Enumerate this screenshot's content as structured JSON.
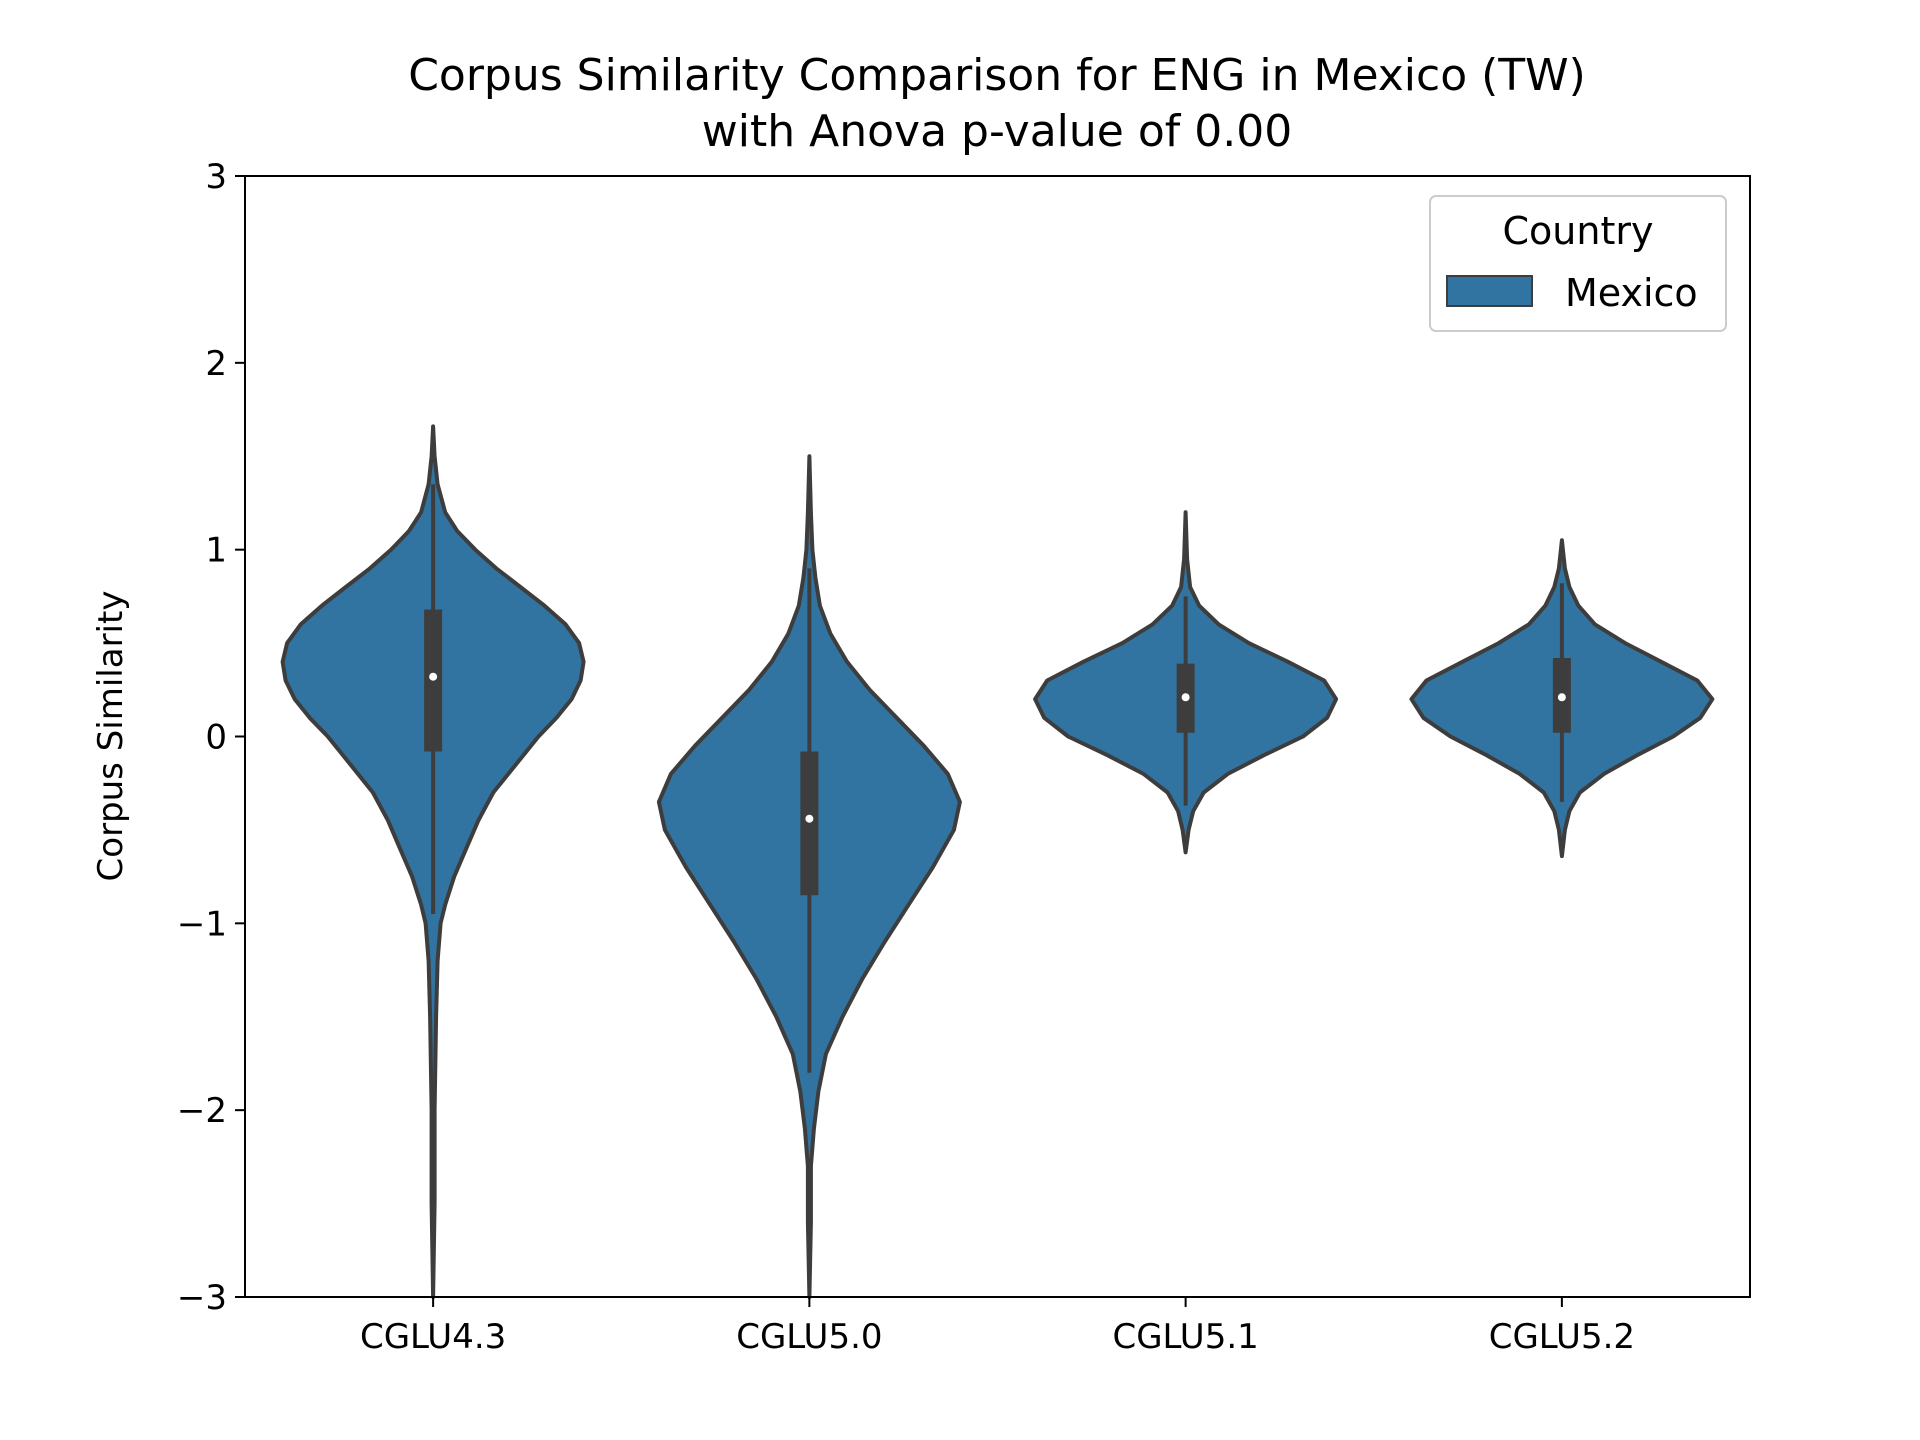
{
  "chart_data": {
    "type": "violin",
    "title_line1": "Corpus Similarity Comparison for ENG in Mexico (TW)",
    "title_line2": "with Anova p-value of 0.00",
    "xlabel": "",
    "ylabel": "Corpus Similarity",
    "ylim": [
      -3,
      3
    ],
    "yticks": [
      -3,
      -2,
      -1,
      0,
      1,
      2,
      3
    ],
    "ytick_labels": [
      "−3",
      "−2",
      "−1",
      "0",
      "1",
      "2",
      "3"
    ],
    "categories": [
      "CGLU4.3",
      "CGLU5.0",
      "CGLU5.1",
      "CGLU5.2"
    ],
    "grid": false,
    "legend": {
      "title": "Country",
      "placement": "top-right",
      "entries": [
        "Mexico"
      ]
    },
    "colors": {
      "fill": "#3274a1",
      "edge": "#3d3d3d",
      "median": "#ffffff"
    },
    "series": [
      {
        "name": "Mexico",
        "violins": [
          {
            "category": "CGLU4.3",
            "min": -3.0,
            "max": 1.66,
            "q1": -0.08,
            "median": 0.32,
            "q3": 0.68,
            "whisker_low": -0.95,
            "whisker_high": 1.35,
            "density": [
              [
                -3.0,
                0.0
              ],
              [
                -2.5,
                0.01
              ],
              [
                -2.0,
                0.01
              ],
              [
                -1.5,
                0.02
              ],
              [
                -1.2,
                0.03
              ],
              [
                -1.0,
                0.05
              ],
              [
                -0.9,
                0.08
              ],
              [
                -0.75,
                0.14
              ],
              [
                -0.6,
                0.22
              ],
              [
                -0.45,
                0.3
              ],
              [
                -0.3,
                0.4
              ],
              [
                -0.15,
                0.55
              ],
              [
                0.0,
                0.7
              ],
              [
                0.1,
                0.82
              ],
              [
                0.2,
                0.92
              ],
              [
                0.3,
                0.98
              ],
              [
                0.4,
                1.0
              ],
              [
                0.5,
                0.97
              ],
              [
                0.6,
                0.88
              ],
              [
                0.7,
                0.74
              ],
              [
                0.8,
                0.58
              ],
              [
                0.9,
                0.42
              ],
              [
                1.0,
                0.28
              ],
              [
                1.1,
                0.16
              ],
              [
                1.2,
                0.08
              ],
              [
                1.35,
                0.03
              ],
              [
                1.5,
                0.01
              ],
              [
                1.66,
                0.0
              ]
            ]
          },
          {
            "category": "CGLU5.0",
            "min": -3.0,
            "max": 1.5,
            "q1": -0.85,
            "median": -0.44,
            "q3": -0.08,
            "whisker_low": -1.8,
            "whisker_high": 0.9,
            "density": [
              [
                -3.0,
                0.0
              ],
              [
                -2.6,
                0.01
              ],
              [
                -2.3,
                0.01
              ],
              [
                -2.1,
                0.03
              ],
              [
                -1.9,
                0.06
              ],
              [
                -1.7,
                0.11
              ],
              [
                -1.5,
                0.22
              ],
              [
                -1.3,
                0.35
              ],
              [
                -1.1,
                0.5
              ],
              [
                -0.9,
                0.66
              ],
              [
                -0.7,
                0.82
              ],
              [
                -0.5,
                0.96
              ],
              [
                -0.35,
                1.0
              ],
              [
                -0.2,
                0.92
              ],
              [
                -0.05,
                0.76
              ],
              [
                0.1,
                0.58
              ],
              [
                0.25,
                0.4
              ],
              [
                0.4,
                0.25
              ],
              [
                0.55,
                0.14
              ],
              [
                0.7,
                0.07
              ],
              [
                0.85,
                0.04
              ],
              [
                1.0,
                0.02
              ],
              [
                1.2,
                0.01
              ],
              [
                1.5,
                0.0
              ]
            ]
          },
          {
            "category": "CGLU5.1",
            "min": -0.62,
            "max": 1.2,
            "q1": 0.02,
            "median": 0.21,
            "q3": 0.39,
            "whisker_low": -0.37,
            "whisker_high": 0.75,
            "density": [
              [
                -0.62,
                0.0
              ],
              [
                -0.5,
                0.02
              ],
              [
                -0.4,
                0.05
              ],
              [
                -0.3,
                0.12
              ],
              [
                -0.2,
                0.28
              ],
              [
                -0.1,
                0.52
              ],
              [
                0.0,
                0.78
              ],
              [
                0.1,
                0.94
              ],
              [
                0.2,
                1.0
              ],
              [
                0.3,
                0.92
              ],
              [
                0.4,
                0.68
              ],
              [
                0.5,
                0.42
              ],
              [
                0.6,
                0.22
              ],
              [
                0.7,
                0.09
              ],
              [
                0.8,
                0.03
              ],
              [
                0.95,
                0.01
              ],
              [
                1.2,
                0.0
              ]
            ]
          },
          {
            "category": "CGLU5.2",
            "min": -0.64,
            "max": 1.05,
            "q1": 0.02,
            "median": 0.21,
            "q3": 0.42,
            "whisker_low": -0.35,
            "whisker_high": 0.82,
            "density": [
              [
                -0.64,
                0.0
              ],
              [
                -0.5,
                0.02
              ],
              [
                -0.4,
                0.05
              ],
              [
                -0.3,
                0.12
              ],
              [
                -0.2,
                0.28
              ],
              [
                -0.1,
                0.5
              ],
              [
                0.0,
                0.74
              ],
              [
                0.1,
                0.92
              ],
              [
                0.2,
                1.0
              ],
              [
                0.3,
                0.9
              ],
              [
                0.4,
                0.66
              ],
              [
                0.5,
                0.42
              ],
              [
                0.6,
                0.22
              ],
              [
                0.7,
                0.11
              ],
              [
                0.8,
                0.05
              ],
              [
                0.9,
                0.02
              ],
              [
                1.05,
                0.0
              ]
            ]
          }
        ]
      }
    ]
  }
}
